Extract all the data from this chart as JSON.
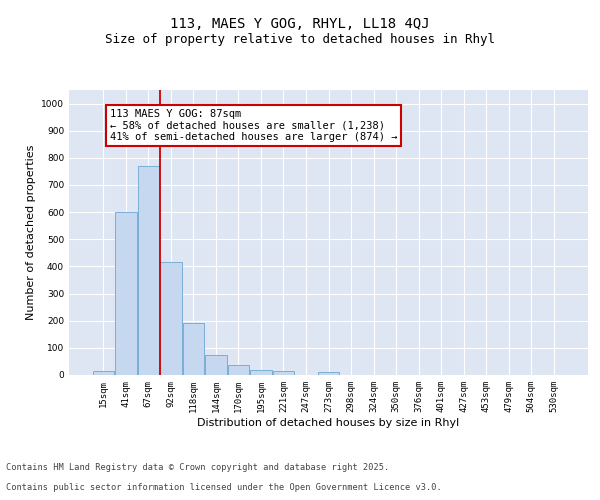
{
  "title_line1": "113, MAES Y GOG, RHYL, LL18 4QJ",
  "title_line2": "Size of property relative to detached houses in Rhyl",
  "xlabel": "Distribution of detached houses by size in Rhyl",
  "ylabel": "Number of detached properties",
  "categories": [
    "15sqm",
    "41sqm",
    "67sqm",
    "92sqm",
    "118sqm",
    "144sqm",
    "170sqm",
    "195sqm",
    "221sqm",
    "247sqm",
    "273sqm",
    "298sqm",
    "324sqm",
    "350sqm",
    "376sqm",
    "401sqm",
    "427sqm",
    "453sqm",
    "479sqm",
    "504sqm",
    "530sqm"
  ],
  "values": [
    13,
    600,
    770,
    415,
    190,
    75,
    38,
    20,
    15,
    0,
    12,
    0,
    0,
    0,
    0,
    0,
    0,
    0,
    0,
    0,
    0
  ],
  "bar_color": "#c5d8f0",
  "bar_edge_color": "#7aaed6",
  "vline_color": "#cc0000",
  "vline_x": 2.5,
  "annotation_text": "113 MAES Y GOG: 87sqm\n← 58% of detached houses are smaller (1,238)\n41% of semi-detached houses are larger (874) →",
  "annotation_box_color": "#cc0000",
  "ylim": [
    0,
    1050
  ],
  "yticks": [
    0,
    100,
    200,
    300,
    400,
    500,
    600,
    700,
    800,
    900,
    1000
  ],
  "bg_color": "#dde6f2",
  "grid_color": "#ffffff",
  "footer_line1": "Contains HM Land Registry data © Crown copyright and database right 2025.",
  "footer_line2": "Contains public sector information licensed under the Open Government Licence v3.0.",
  "title_fontsize": 10,
  "subtitle_fontsize": 9,
  "axis_label_fontsize": 8,
  "tick_fontsize": 6.5,
  "annotation_fontsize": 7.5,
  "footer_fontsize": 6.2
}
